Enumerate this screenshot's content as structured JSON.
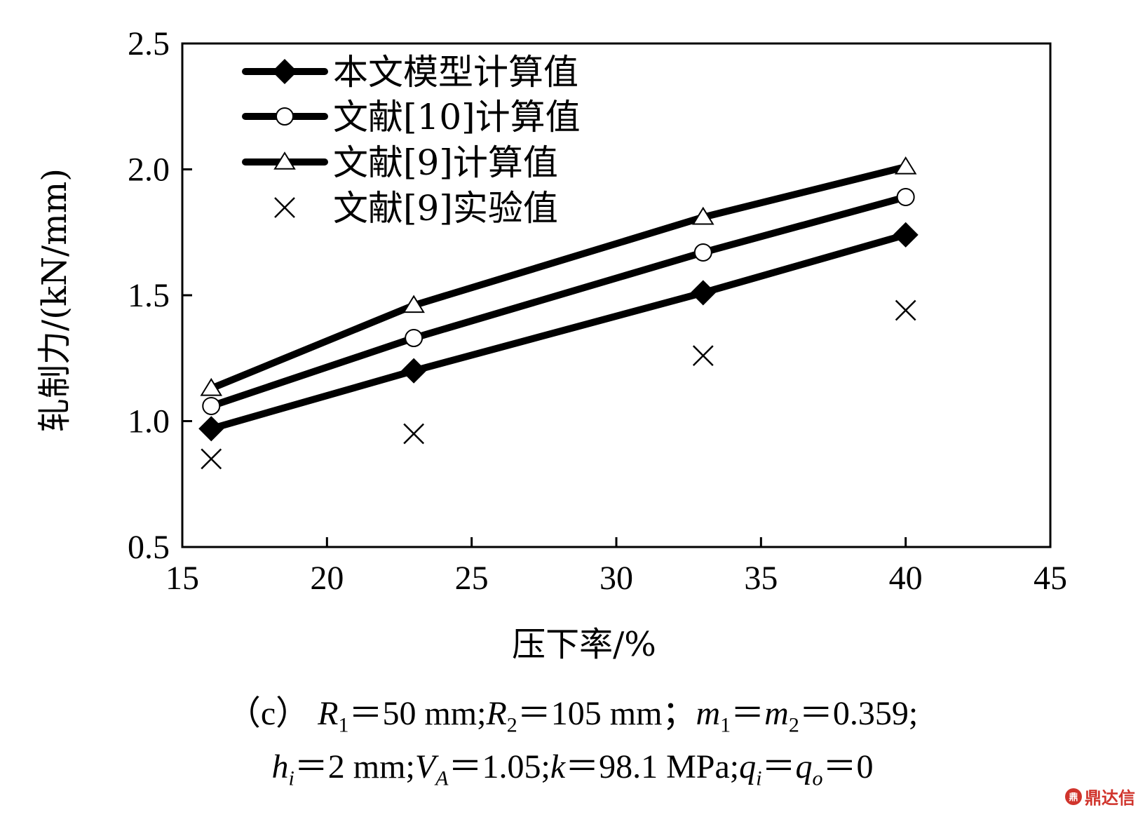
{
  "chart_data": {
    "type": "line",
    "xlabel": "压下率/%",
    "ylabel": "轧制力/(kN/mm)",
    "xlim": [
      15,
      45
    ],
    "ylim": [
      0.5,
      2.5
    ],
    "xticks": [
      "15",
      "20",
      "25",
      "30",
      "35",
      "40",
      "45"
    ],
    "yticks": [
      "0.5",
      "1.0",
      "1.5",
      "2.0",
      "2.5"
    ],
    "grid": false,
    "legend_position": "top-left",
    "series": [
      {
        "name": "本文模型计算值",
        "marker": "diamond-filled",
        "line": true,
        "x": [
          16,
          23,
          33,
          40
        ],
        "y": [
          0.97,
          1.2,
          1.51,
          1.74
        ]
      },
      {
        "name": "文献[10]计算值",
        "marker": "circle-open",
        "line": true,
        "x": [
          16,
          23,
          33,
          40
        ],
        "y": [
          1.06,
          1.33,
          1.67,
          1.89
        ]
      },
      {
        "name": "文献[9]计算值",
        "marker": "triangle-open",
        "line": true,
        "x": [
          16,
          23,
          33,
          40
        ],
        "y": [
          1.13,
          1.46,
          1.81,
          2.01
        ]
      },
      {
        "name": "文献[9]实验值",
        "marker": "x",
        "line": false,
        "x": [
          16,
          23,
          33,
          40
        ],
        "y": [
          0.85,
          0.95,
          1.26,
          1.44
        ]
      }
    ]
  },
  "caption": {
    "line1": [
      {
        "text": "（c） ",
        "italic": false
      },
      {
        "text": "R",
        "italic": true
      },
      {
        "text": "1",
        "sub": true
      },
      {
        "text": "＝50 mm;",
        "italic": false
      },
      {
        "text": "R",
        "italic": true
      },
      {
        "text": "2",
        "sub": true
      },
      {
        "text": "＝105 mm；",
        "italic": false
      },
      {
        "text": "m",
        "italic": true
      },
      {
        "text": "1",
        "sub": true
      },
      {
        "text": "＝",
        "italic": false
      },
      {
        "text": "m",
        "italic": true
      },
      {
        "text": "2",
        "sub": true
      },
      {
        "text": "＝0.359;",
        "italic": false
      }
    ],
    "line2": [
      {
        "text": "h",
        "italic": true
      },
      {
        "text": "i",
        "sub": true,
        "italic": true
      },
      {
        "text": "＝2 mm;",
        "italic": false
      },
      {
        "text": "V",
        "italic": true
      },
      {
        "text": "A",
        "sub": true,
        "italic": true
      },
      {
        "text": "＝1.05;",
        "italic": false
      },
      {
        "text": "k",
        "italic": true
      },
      {
        "text": "＝98.1 MPa;",
        "italic": false
      },
      {
        "text": "q",
        "italic": true
      },
      {
        "text": "i",
        "sub": true,
        "italic": true
      },
      {
        "text": "＝",
        "italic": false
      },
      {
        "text": "q",
        "italic": true
      },
      {
        "text": "o",
        "sub": true,
        "italic": true
      },
      {
        "text": "＝0",
        "italic": false
      }
    ]
  },
  "watermark": {
    "logo_text": "鼎",
    "text": "鼎达信"
  },
  "colors": {
    "line": "#000000",
    "background": "#ffffff",
    "watermark": "#d0342c"
  }
}
